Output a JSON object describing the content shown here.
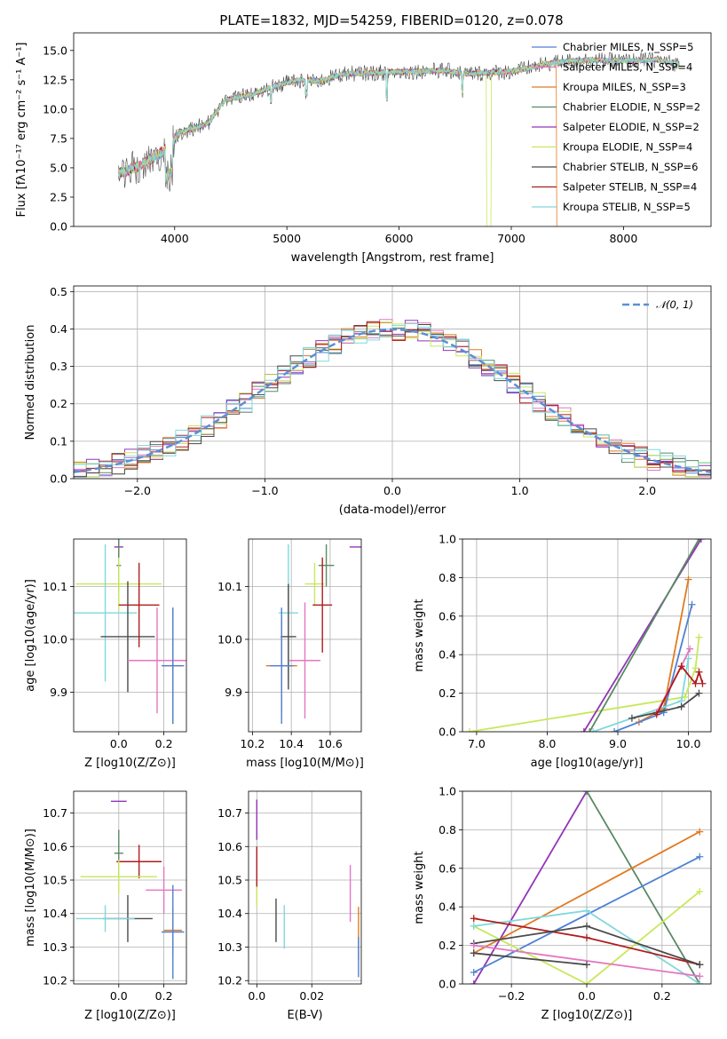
{
  "figure": {
    "title": "PLATE=1832, MJD=54259, FIBERID=0120, z=0.078"
  },
  "chart_data": [
    {
      "id": "spectrum",
      "type": "line",
      "xlabel": "wavelength [Angstrom, rest frame]",
      "ylabel": "Flux [fλ10⁻¹⁷ erg cm⁻² s⁻¹ A⁻¹]",
      "xlim": [
        3100,
        8780
      ],
      "ylim": [
        0,
        16.5
      ],
      "xticks": [
        4000,
        5000,
        6000,
        7000,
        8000
      ],
      "yticks": [
        0.0,
        2.5,
        5.0,
        7.5,
        10.0,
        12.5,
        15.0
      ],
      "grid": false,
      "legend_position": "right",
      "anchors": {
        "x": [
          3500,
          3700,
          3900,
          4050,
          4300,
          4450,
          4700,
          4900,
          5100,
          5300,
          5500,
          5800,
          6100,
          6400,
          6600,
          6800,
          7000,
          7200,
          7400,
          7700,
          8000,
          8300,
          8500
        ],
        "y": [
          4.5,
          5.2,
          6.4,
          8.0,
          8.8,
          10.8,
          11.3,
          12.0,
          12.5,
          12.4,
          13.0,
          13.1,
          13.2,
          13.3,
          13.0,
          13.1,
          13.2,
          13.6,
          14.0,
          14.2,
          14.1,
          14.2,
          13.8
        ]
      },
      "series": [
        {
          "name": "Chabrier MILES, N_SSP=5",
          "color": "#4f81d3"
        },
        {
          "name": "Salpeter MILES, N_SSP=4",
          "color": "#e377c2"
        },
        {
          "name": "Kroupa MILES, N_SSP=3",
          "color": "#e07b23"
        },
        {
          "name": "Chabrier ELODIE, N_SSP=2",
          "color": "#5a8a64"
        },
        {
          "name": "Salpeter ELODIE, N_SSP=2",
          "color": "#9334b8"
        },
        {
          "name": "Kroupa ELODIE, N_SSP=4",
          "color": "#c7e85a"
        },
        {
          "name": "Chabrier STELIB, N_SSP=6",
          "color": "#4a4a4a"
        },
        {
          "name": "Salpeter STELIB, N_SSP=4",
          "color": "#b01c1c"
        },
        {
          "name": "Kroupa STELIB, N_SSP=5",
          "color": "#7fd8dc"
        }
      ]
    },
    {
      "id": "residuals",
      "type": "line",
      "xlabel": "(data-model)/error",
      "ylabel": "Normed distribution",
      "xlim": [
        -2.5,
        2.5
      ],
      "ylim": [
        0,
        0.515
      ],
      "xticks": [
        -2,
        -1,
        0,
        1,
        2
      ],
      "yticks": [
        0.0,
        0.1,
        0.2,
        0.3,
        0.4,
        0.5
      ],
      "grid": true,
      "legend_position": "top-right",
      "gaussian": {
        "name": "𝒩(0, 1)",
        "color": "#5b8fd6",
        "mean": 0,
        "sigma": 1
      },
      "bin_width": 0.1
    },
    {
      "id": "age-vs-z",
      "type": "scatter",
      "xlabel": "Z [log10(Z/Z⊙)]",
      "ylabel": "age  [log10(age/yr)]",
      "xlim": [
        -0.2,
        0.3
      ],
      "ylim": [
        9.825,
        10.19
      ],
      "xticks": [
        0.0,
        0.2
      ],
      "yticks": [
        9.9,
        10.0,
        10.1
      ],
      "grid": true,
      "points": [
        {
          "color": "#9334b8",
          "x": 0.0,
          "y": 10.175,
          "xerr": 0.02,
          "yerr": 0.02
        },
        {
          "color": "#5a8a64",
          "x": 0.0,
          "y": 10.14,
          "xerr": 0.01,
          "yerr": 0.05
        },
        {
          "color": "#c7e85a",
          "x": 0.0,
          "y": 10.105,
          "xerr": 0.19,
          "yerr": 0.05
        },
        {
          "color": "#b01c1c",
          "x": 0.09,
          "y": 10.065,
          "xerr": 0.09,
          "yerr": 0.08
        },
        {
          "color": "#7fd8dc",
          "x": -0.06,
          "y": 10.05,
          "xerr": 0.14,
          "yerr": 0.13
        },
        {
          "color": "#4a4a4a",
          "x": 0.04,
          "y": 10.005,
          "xerr": 0.12,
          "yerr": 0.105
        },
        {
          "color": "#e377c2",
          "x": 0.17,
          "y": 9.96,
          "xerr": 0.13,
          "yerr": 0.1
        },
        {
          "color": "#e07b23",
          "x": 0.24,
          "y": 9.95,
          "xerr": 0.04,
          "yerr": 0.11
        },
        {
          "color": "#4f81d3",
          "x": 0.24,
          "y": 9.95,
          "xerr": 0.05,
          "yerr": 0.11
        }
      ]
    },
    {
      "id": "age-vs-mass",
      "type": "scatter",
      "xlabel": "mass [log10(M/M⊙)]",
      "ylabel": "",
      "xlim": [
        10.18,
        10.76
      ],
      "ylim": [
        9.825,
        10.19
      ],
      "xticks": [
        10.2,
        10.4,
        10.6
      ],
      "yticks": [
        9.9,
        10.0,
        10.1
      ],
      "grid": true,
      "points": [
        {
          "color": "#9334b8",
          "x": 10.74,
          "y": 10.175,
          "xerr": 0.04,
          "yerr": 0.0
        },
        {
          "color": "#5a8a64",
          "x": 10.58,
          "y": 10.14,
          "xerr": 0.04,
          "yerr": 0.04
        },
        {
          "color": "#c7e85a",
          "x": 10.52,
          "y": 10.105,
          "xerr": 0.05,
          "yerr": 0.04
        },
        {
          "color": "#b01c1c",
          "x": 10.56,
          "y": 10.065,
          "xerr": 0.05,
          "yerr": 0.09
        },
        {
          "color": "#7fd8dc",
          "x": 10.385,
          "y": 10.05,
          "xerr": 0.05,
          "yerr": 0.13
        },
        {
          "color": "#4a4a4a",
          "x": 10.385,
          "y": 10.005,
          "xerr": 0.04,
          "yerr": 0.1
        },
        {
          "color": "#e377c2",
          "x": 10.47,
          "y": 9.96,
          "xerr": 0.08,
          "yerr": 0.11
        },
        {
          "color": "#e07b23",
          "x": 10.35,
          "y": 9.95,
          "xerr": 0.08,
          "yerr": 0.09
        },
        {
          "color": "#4f81d3",
          "x": 10.35,
          "y": 9.95,
          "xerr": 0.06,
          "yerr": 0.11
        }
      ]
    },
    {
      "id": "massweight-vs-age",
      "type": "line",
      "xlabel": "age  [log10(age/yr)]",
      "ylabel": "mass weight",
      "xlim": [
        6.8,
        10.32
      ],
      "ylim": [
        0,
        1.0
      ],
      "xticks": [
        7,
        8,
        9,
        10
      ],
      "yticks": [
        0.0,
        0.2,
        0.4,
        0.6,
        0.8,
        1.0
      ],
      "grid": true,
      "series": [
        {
          "color": "#c7e85a",
          "x": [
            6.9,
            9.95,
            10.1,
            10.15
          ],
          "y": [
            0.0,
            0.18,
            0.33,
            0.49
          ]
        },
        {
          "color": "#9334b8",
          "x": [
            8.52,
            10.18
          ],
          "y": [
            0.0,
            1.0
          ]
        },
        {
          "color": "#5a8a64",
          "x": [
            8.6,
            10.15
          ],
          "y": [
            0.0,
            1.0
          ]
        },
        {
          "color": "#e07b23",
          "x": [
            9.3,
            9.65,
            10.0
          ],
          "y": [
            0.05,
            0.12,
            0.79
          ]
        },
        {
          "color": "#4f81d3",
          "x": [
            8.95,
            9.65,
            10.05
          ],
          "y": [
            0.0,
            0.1,
            0.66
          ]
        },
        {
          "color": "#7fd8dc",
          "x": [
            8.65,
            9.9,
            10.0
          ],
          "y": [
            0.0,
            0.16,
            0.38
          ]
        },
        {
          "color": "#e377c2",
          "x": [
            9.55,
            9.9,
            10.02
          ],
          "y": [
            0.1,
            0.34,
            0.43
          ]
        },
        {
          "color": "#4a4a4a",
          "x": [
            9.2,
            9.9,
            10.15
          ],
          "y": [
            0.07,
            0.13,
            0.2
          ]
        },
        {
          "color": "#b01c1c",
          "x": [
            9.55,
            9.9,
            10.1,
            10.15,
            10.2
          ],
          "y": [
            0.09,
            0.34,
            0.25,
            0.31,
            0.25
          ]
        }
      ]
    },
    {
      "id": "mass-vs-z",
      "type": "scatter",
      "xlabel": "Z [log10(Z/Z⊙)]",
      "ylabel": "mass [log10(M/M⊙)]",
      "xlim": [
        -0.2,
        0.3
      ],
      "ylim": [
        10.19,
        10.765
      ],
      "xticks": [
        0.0,
        0.2
      ],
      "yticks": [
        10.2,
        10.3,
        10.4,
        10.5,
        10.6,
        10.7
      ],
      "grid": true,
      "points": [
        {
          "color": "#9334b8",
          "x": 0.0,
          "y": 10.735,
          "xerr": 0.035,
          "yerr": 0.0
        },
        {
          "color": "#5a8a64",
          "x": 0.0,
          "y": 10.58,
          "xerr": 0.02,
          "yerr": 0.07
        },
        {
          "color": "#b01c1c",
          "x": 0.09,
          "y": 10.555,
          "xerr": 0.1,
          "yerr": 0.05
        },
        {
          "color": "#c7e85a",
          "x": 0.0,
          "y": 10.51,
          "xerr": 0.17,
          "yerr": 0.05
        },
        {
          "color": "#e377c2",
          "x": 0.2,
          "y": 10.47,
          "xerr": 0.08,
          "yerr": 0.07
        },
        {
          "color": "#4a4a4a",
          "x": 0.04,
          "y": 10.385,
          "xerr": 0.11,
          "yerr": 0.07
        },
        {
          "color": "#7fd8dc",
          "x": -0.06,
          "y": 10.385,
          "xerr": 0.13,
          "yerr": 0.04
        },
        {
          "color": "#e07b23",
          "x": 0.24,
          "y": 10.35,
          "xerr": 0.04,
          "yerr": 0.07
        },
        {
          "color": "#4f81d3",
          "x": 0.24,
          "y": 10.345,
          "xerr": 0.05,
          "yerr": 0.14
        }
      ]
    },
    {
      "id": "mass-vs-ebv",
      "type": "scatter",
      "xlabel": "E(B-V)",
      "ylabel": "",
      "xlim": [
        -0.003,
        0.038
      ],
      "ylim": [
        10.19,
        10.765
      ],
      "xticks": [
        0.0,
        0.02
      ],
      "yticks": [
        10.2,
        10.3,
        10.4,
        10.5,
        10.6,
        10.7
      ],
      "grid": true,
      "points": [
        {
          "color": "#9334b8",
          "x": 0.0,
          "y": 10.68,
          "xerr": 0.0,
          "yerr": 0.06
        },
        {
          "color": "#b01c1c",
          "x": 0.0,
          "y": 10.54,
          "xerr": 0.0,
          "yerr": 0.06
        },
        {
          "color": "#c7e85a",
          "x": 0.0,
          "y": 10.45,
          "xerr": 0.0,
          "yerr": 0.03
        },
        {
          "color": "#4a4a4a",
          "x": 0.007,
          "y": 10.38,
          "xerr": 0.0,
          "yerr": 0.065
        },
        {
          "color": "#7fd8dc",
          "x": 0.01,
          "y": 10.36,
          "xerr": 0.0,
          "yerr": 0.065
        },
        {
          "color": "#e377c2",
          "x": 0.034,
          "y": 10.46,
          "xerr": 0.0,
          "yerr": 0.085
        },
        {
          "color": "#e07b23",
          "x": 0.037,
          "y": 10.34,
          "xerr": 0.0,
          "yerr": 0.08
        },
        {
          "color": "#4f81d3",
          "x": 0.037,
          "y": 10.27,
          "xerr": 0.0,
          "yerr": 0.06
        }
      ]
    },
    {
      "id": "massweight-vs-z",
      "type": "line",
      "xlabel": "Z [log10(Z/Z⊙)]",
      "ylabel": "mass weight",
      "xlim": [
        -0.33,
        0.33
      ],
      "ylim": [
        0,
        1.0
      ],
      "xticks": [
        -0.2,
        0.0,
        0.2
      ],
      "yticks": [
        0.0,
        0.2,
        0.4,
        0.6,
        0.8,
        1.0
      ],
      "grid": true,
      "series": [
        {
          "color": "#9334b8",
          "x": [
            -0.3,
            0.0
          ],
          "y": [
            0.0,
            1.0
          ]
        },
        {
          "color": "#5a8a64",
          "x": [
            0.0,
            0.3
          ],
          "y": [
            1.0,
            0.0
          ]
        },
        {
          "color": "#e07b23",
          "x": [
            -0.3,
            0.3
          ],
          "y": [
            0.16,
            0.79
          ]
        },
        {
          "color": "#4f81d3",
          "x": [
            -0.3,
            0.3
          ],
          "y": [
            0.06,
            0.66
          ]
        },
        {
          "color": "#c7e85a",
          "x": [
            -0.3,
            0.0,
            0.3
          ],
          "y": [
            0.3,
            0.0,
            0.48
          ]
        },
        {
          "color": "#7fd8dc",
          "x": [
            -0.3,
            0.0,
            0.3
          ],
          "y": [
            0.3,
            0.38,
            0.0
          ]
        },
        {
          "color": "#b01c1c",
          "x": [
            -0.3,
            0.0,
            0.3
          ],
          "y": [
            0.34,
            0.24,
            0.1
          ]
        },
        {
          "color": "#4a4a4a",
          "x": [
            -0.3,
            0.0,
            0.3
          ],
          "y": [
            0.21,
            0.3,
            0.1
          ]
        },
        {
          "color": "#e377c2",
          "x": [
            -0.3,
            0.3
          ],
          "y": [
            0.2,
            0.04
          ]
        },
        {
          "color": "#4a4a4a",
          "x": [
            -0.3,
            0.0
          ],
          "y": [
            0.16,
            0.1
          ]
        }
      ]
    }
  ]
}
